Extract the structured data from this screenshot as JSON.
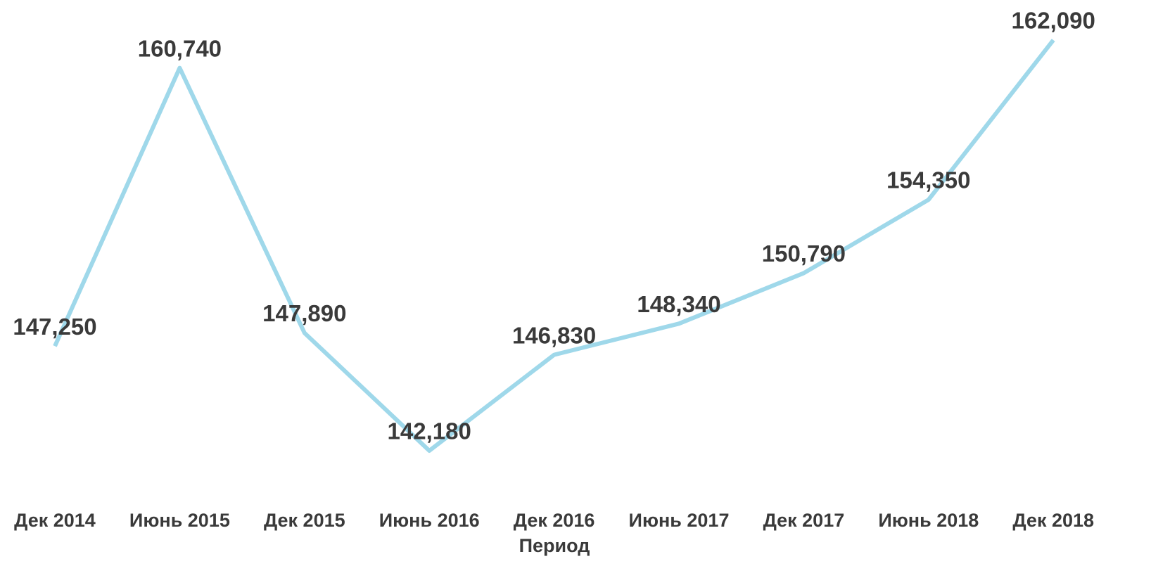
{
  "chart_data": {
    "type": "line",
    "x_label": "Период",
    "categories": [
      "Дек 2014",
      "Июнь 2015",
      "Дек 2015",
      "Июнь 2016",
      "Дек 2016",
      "Июнь 2017",
      "Дек 2017",
      "Июнь 2018",
      "Дек 2018"
    ],
    "series": [
      {
        "color": "#9fd8ea",
        "values": [
          147250,
          160740,
          147890,
          142180,
          146830,
          148340,
          150790,
          154350,
          162090
        ],
        "value_labels": [
          "147,250",
          "160,740",
          "147,890",
          "142,180",
          "146,830",
          "148,340",
          "150,790",
          "154,350",
          "162,090"
        ]
      }
    ]
  }
}
